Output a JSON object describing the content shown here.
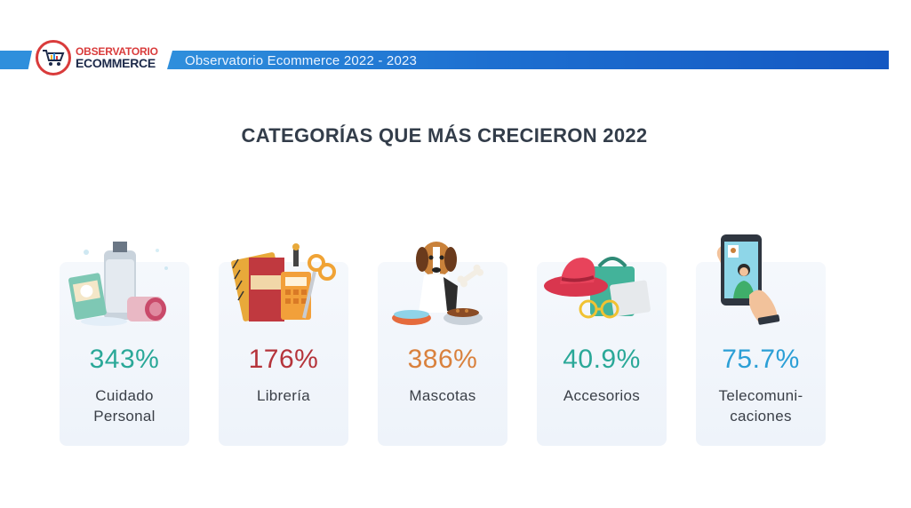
{
  "header": {
    "logo_line1": "OBSERVATORIO",
    "logo_line2": "ECOMMERCE",
    "band_title": "Observatorio Ecommerce 2022 - 2023",
    "colors": {
      "band": "#1d6fd0",
      "logo_red": "#d93b3b",
      "logo_navy": "#1d2a4a"
    }
  },
  "page_title": "CATEGORÍAS QUE MÁS CRECIERON 2022",
  "categories": [
    {
      "value": "343%",
      "label_line1": "Cuidado",
      "label_line2": "Personal",
      "color": "#2aa898",
      "icon": "personal-care-products-icon"
    },
    {
      "value": "176%",
      "label_line1": "Librería",
      "label_line2": "",
      "color": "#b5343b",
      "icon": "stationery-supplies-icon"
    },
    {
      "value": "386%",
      "label_line1": "Mascotas",
      "label_line2": "",
      "color": "#d9813d",
      "icon": "dog-with-bowl-icon"
    },
    {
      "value": "40.9%",
      "label_line1": "Accesorios",
      "label_line2": "",
      "color": "#2aa898",
      "icon": "hat-glasses-accessories-icon"
    },
    {
      "value": "75.7%",
      "label_line1": "Telecomuni-",
      "label_line2": "caciones",
      "color": "#2b9fd6",
      "icon": "phone-video-call-icon"
    }
  ]
}
